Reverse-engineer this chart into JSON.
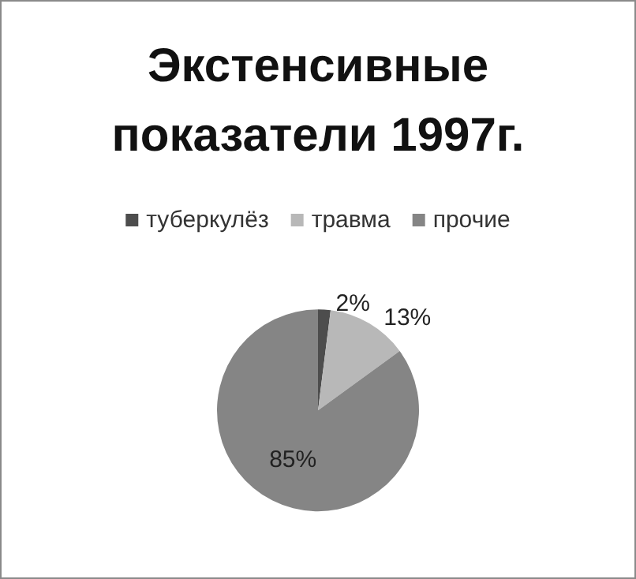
{
  "chart_data": {
    "type": "pie",
    "title": "Экстенсивные\nпоказатели 1997г.",
    "categories": [
      "туберкулёз",
      "травма",
      "прочие"
    ],
    "values": [
      2,
      13,
      85
    ],
    "colors": [
      "#4d4d4d",
      "#b8b8b8",
      "#858585"
    ],
    "value_labels": [
      "2%",
      "13%",
      "85%"
    ],
    "legend": "top"
  }
}
